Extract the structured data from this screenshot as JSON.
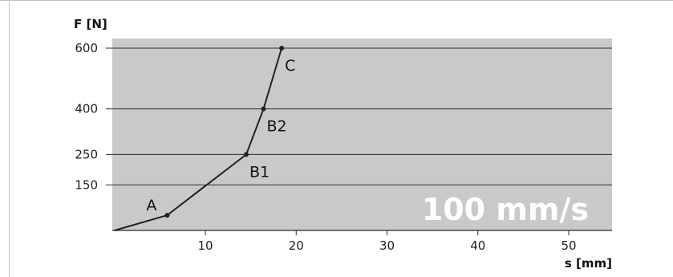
{
  "chart_data": {
    "type": "line",
    "ylabel": "F [N]",
    "xlabel": "s [mm]",
    "annotation": "100 mm/s",
    "xlim": [
      0,
      55
    ],
    "ylim": [
      0,
      600
    ],
    "x_ticks": [
      10,
      20,
      30,
      40,
      50
    ],
    "y_ticks": [
      150,
      250,
      400,
      600
    ],
    "grid": "horizontal",
    "background_color": "#c8c9cb",
    "line_color": "#222222",
    "series": [
      {
        "x": [
          0,
          5.8,
          14.5,
          16.4,
          18.4
        ],
        "y": [
          0,
          50,
          250,
          400,
          600
        ]
      }
    ],
    "points": [
      {
        "label": "A",
        "x": 5.8,
        "y": 50
      },
      {
        "label": "B1",
        "x": 14.5,
        "y": 250
      },
      {
        "label": "B2",
        "x": 16.4,
        "y": 400
      },
      {
        "label": "C",
        "x": 18.4,
        "y": 600
      }
    ]
  }
}
